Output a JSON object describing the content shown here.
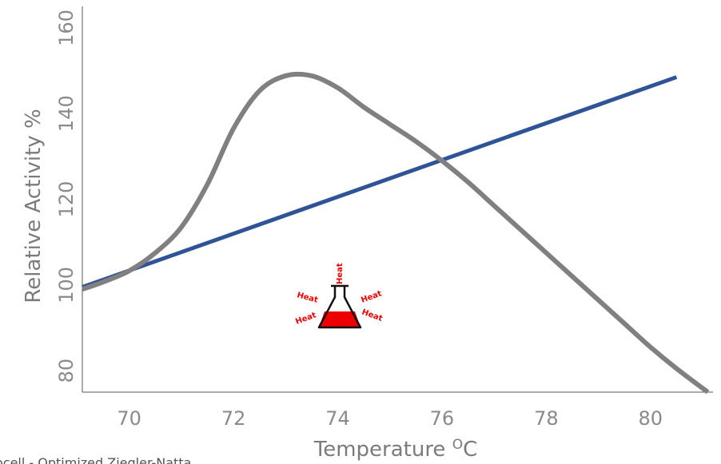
{
  "chart_data": {
    "type": "line",
    "xlabel": "Temperature ",
    "xlabel_superscript": "O",
    "xlabel_unit": "C",
    "ylabel": "Relative Activity %",
    "xlim": [
      69.1,
      81.2
    ],
    "ylim": [
      75,
      165
    ],
    "x_ticks": [
      70,
      72,
      74,
      76,
      78,
      80
    ],
    "y_ticks": [
      80,
      100,
      120,
      140,
      160
    ],
    "grid": false,
    "series": [
      {
        "color": "#2f5496",
        "x": [
          69.1,
          80.5
        ],
        "y": [
          99.5,
          148.5
        ]
      },
      {
        "color": "#808080",
        "x": [
          69.1,
          69.5,
          70,
          70.5,
          71,
          71.5,
          72,
          72.5,
          73,
          73.5,
          74,
          74.5,
          75,
          75.5,
          76,
          76.5,
          77,
          77.5,
          78,
          78.5,
          79,
          79.5,
          80,
          80.5,
          81.1
        ],
        "y": [
          99,
          100.7,
          103.3,
          107.5,
          113.5,
          123.5,
          136.5,
          145.3,
          148.8,
          148.8,
          146,
          141.5,
          137.5,
          133.5,
          129,
          124,
          118.5,
          113,
          107.5,
          102,
          96.5,
          91,
          85.5,
          80.5,
          75
        ]
      }
    ]
  },
  "annotation": {
    "icon": "heated-flask-icon",
    "heat_labels": [
      "Heat",
      "Heat",
      "Heat",
      "Heat",
      "Heat"
    ],
    "liquid_color": "#ee0000"
  },
  "footnote": "ocell - Optimized Ziegler-Natta"
}
